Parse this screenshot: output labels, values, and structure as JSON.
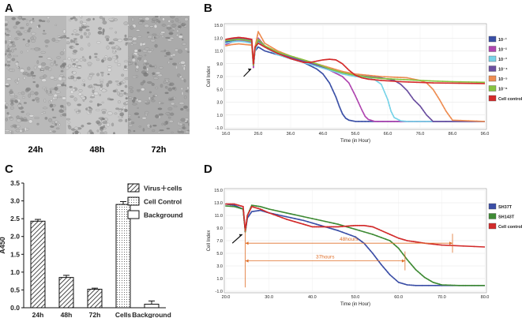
{
  "panels": {
    "a": "A",
    "b": "B",
    "c": "C",
    "d": "D"
  },
  "micrographs": [
    {
      "label": "24h",
      "tone": "#b9b9b9"
    },
    {
      "label": "48h",
      "tone": "#c9c9c9"
    },
    {
      "label": "72h",
      "tone": "#aaaaaa"
    }
  ],
  "chart_data": [
    {
      "id": "B",
      "type": "line",
      "xlabel": "Time (in Hour)",
      "ylabel": "Cell Index",
      "xlim": [
        16,
        96
      ],
      "ylim": [
        -1,
        15
      ],
      "xticks": [
        "16.0",
        "26.0",
        "36.0",
        "46.0",
        "56.0",
        "66.0",
        "76.0",
        "86.0",
        "96.0"
      ],
      "yticks": [
        "-1.0",
        "1.0",
        "3.0",
        "5.0",
        "7.0",
        "9.0",
        "11.0",
        "13.0",
        "15.0"
      ],
      "grid": true,
      "legend_position": "right",
      "annotation": "arrow at virus addition (~24.5 h)",
      "series": [
        {
          "name": "10⁻¹",
          "color": "#3a4fa6",
          "x": [
            16,
            18,
            20,
            22,
            24,
            24.5,
            25,
            26,
            28,
            32,
            36,
            40,
            44,
            46,
            48,
            50,
            51,
            52,
            53,
            54,
            56,
            60,
            66,
            70,
            80,
            96
          ],
          "y": [
            12.4,
            12.6,
            12.8,
            12.7,
            12.4,
            8.6,
            11.0,
            11.6,
            11.0,
            10.4,
            9.8,
            9.2,
            8.2,
            7.4,
            6.0,
            3.8,
            2.4,
            1.2,
            0.5,
            0.2,
            0.0,
            0.0,
            0.0,
            0.0,
            0.0,
            0.0
          ]
        },
        {
          "name": "10⁻²",
          "color": "#b046b0",
          "x": [
            16,
            18,
            20,
            22,
            24,
            24.5,
            25,
            26,
            28,
            32,
            36,
            40,
            44,
            48,
            52,
            54,
            56,
            58,
            59,
            60,
            62,
            66,
            70,
            80,
            96
          ],
          "y": [
            12.0,
            12.4,
            12.6,
            12.5,
            12.3,
            8.4,
            11.2,
            13.0,
            11.8,
            10.6,
            10.0,
            9.4,
            8.8,
            8.0,
            7.0,
            6.0,
            4.0,
            1.8,
            0.8,
            0.3,
            0.0,
            0.0,
            0.0,
            0.0,
            0.0
          ]
        },
        {
          "name": "10⁻³",
          "color": "#78d3e8",
          "x": [
            16,
            18,
            20,
            22,
            24,
            24.5,
            25,
            26,
            28,
            32,
            36,
            40,
            44,
            48,
            52,
            56,
            60,
            62,
            64,
            66,
            67,
            68,
            70,
            72,
            80,
            96
          ],
          "y": [
            12.2,
            12.4,
            12.5,
            12.4,
            12.2,
            8.8,
            11.0,
            12.4,
            11.6,
            10.4,
            9.8,
            9.2,
            8.6,
            8.0,
            7.4,
            7.0,
            6.8,
            6.5,
            5.8,
            3.4,
            1.6,
            0.6,
            0.1,
            0.0,
            0.0,
            0.0
          ]
        },
        {
          "name": "10⁻⁴",
          "color": "#6b4fa0",
          "x": [
            16,
            18,
            20,
            22,
            24,
            24.5,
            25,
            26,
            28,
            32,
            36,
            40,
            44,
            48,
            52,
            56,
            60,
            64,
            68,
            70,
            72,
            74,
            76,
            78,
            80,
            96
          ],
          "y": [
            12.6,
            12.8,
            12.9,
            12.8,
            12.6,
            9.0,
            11.4,
            12.6,
            11.8,
            10.6,
            10.0,
            9.4,
            8.8,
            8.2,
            7.6,
            7.2,
            7.0,
            6.8,
            6.4,
            5.8,
            4.8,
            3.4,
            2.4,
            1.0,
            0.0,
            0.0
          ]
        },
        {
          "name": "10⁻⁵",
          "color": "#ee8d52",
          "x": [
            16,
            18,
            20,
            22,
            24,
            24.5,
            25,
            26,
            28,
            32,
            36,
            40,
            44,
            48,
            52,
            56,
            60,
            64,
            68,
            72,
            76,
            78,
            80,
            82,
            84,
            86,
            96
          ],
          "y": [
            11.8,
            12.0,
            12.1,
            12.0,
            11.9,
            8.8,
            11.6,
            14.0,
            12.2,
            11.0,
            10.2,
            9.6,
            9.0,
            8.4,
            7.8,
            7.4,
            7.2,
            7.0,
            6.9,
            6.8,
            6.4,
            6.0,
            5.0,
            3.4,
            1.6,
            0.2,
            0.0
          ]
        },
        {
          "name": "10⁻⁶",
          "color": "#86c440",
          "x": [
            16,
            18,
            20,
            22,
            24,
            24.5,
            25,
            26,
            28,
            32,
            36,
            40,
            44,
            48,
            52,
            56,
            60,
            64,
            68,
            72,
            76,
            80,
            86,
            96
          ],
          "y": [
            12.6,
            12.7,
            12.8,
            12.7,
            12.5,
            8.8,
            11.4,
            12.8,
            11.8,
            10.8,
            10.2,
            9.6,
            9.0,
            8.2,
            7.6,
            7.2,
            6.9,
            6.7,
            6.6,
            6.5,
            6.4,
            6.3,
            6.2,
            6.1
          ]
        },
        {
          "name": "Cell control",
          "color": "#d42a2a",
          "x": [
            16,
            18,
            20,
            22,
            24,
            24.5,
            25,
            26,
            28,
            32,
            36,
            40,
            42,
            44,
            46,
            48,
            50,
            52,
            54,
            56,
            58,
            60,
            64,
            70,
            80,
            96
          ],
          "y": [
            12.8,
            13.0,
            13.1,
            13.0,
            12.8,
            9.0,
            11.6,
            12.2,
            11.6,
            10.6,
            9.8,
            9.2,
            9.2,
            9.4,
            9.6,
            9.7,
            9.6,
            9.0,
            8.0,
            7.2,
            6.8,
            6.6,
            6.4,
            6.2,
            6.0,
            5.9
          ]
        }
      ]
    },
    {
      "id": "C",
      "type": "bar",
      "ylabel": "A450",
      "ylim": [
        0,
        3.5
      ],
      "yticks": [
        "0.0",
        "0.5",
        "1.0",
        "1.5",
        "2.0",
        "2.5",
        "3.0",
        "3.5"
      ],
      "categories": [
        "24h",
        "48h",
        "72h",
        "Cells",
        "Background"
      ],
      "values": [
        2.43,
        0.85,
        0.52,
        2.9,
        0.1
      ],
      "errors": [
        0.05,
        0.06,
        0.03,
        0.08,
        0.09
      ],
      "patterns": [
        "hatch",
        "hatch",
        "hatch",
        "dots",
        "empty"
      ],
      "legend_position": "top-right",
      "legend": [
        {
          "label": "Virus＋cells",
          "pattern": "hatch"
        },
        {
          "label": "Cell Control",
          "pattern": "dots"
        },
        {
          "label": "Background",
          "pattern": "empty"
        }
      ]
    },
    {
      "id": "D",
      "type": "line",
      "xlabel": "Time (in Hour)",
      "ylabel": "Cell Index",
      "xlim": [
        20,
        80
      ],
      "ylim": [
        -1,
        15
      ],
      "xticks": [
        "20.0",
        "30.0",
        "40.0",
        "50.0",
        "60.0",
        "70.0",
        "80.0"
      ],
      "yticks": [
        "-1.0",
        "1.0",
        "3.0",
        "5.0",
        "7.0",
        "9.0",
        "11.0",
        "13.0",
        "15.0"
      ],
      "grid": true,
      "legend_position": "right",
      "annotations": [
        {
          "text": "48hours",
          "from_x": 24.5,
          "to_x": 72.5,
          "y": 6.6
        },
        {
          "text": "37hours",
          "from_x": 24.5,
          "to_x": 61.5,
          "y": 3.8
        }
      ],
      "series": [
        {
          "name": "SH37T",
          "color": "#3b4ea6",
          "x": [
            20,
            22,
            24,
            24.5,
            25,
            26,
            28,
            30,
            34,
            38,
            42,
            46,
            50,
            52,
            54,
            56,
            58,
            60,
            62,
            64,
            70,
            80
          ],
          "y": [
            12.8,
            12.6,
            12.0,
            8.4,
            10.6,
            11.6,
            11.8,
            11.4,
            10.8,
            10.2,
            9.4,
            8.6,
            7.6,
            6.6,
            5.0,
            3.2,
            1.6,
            0.4,
            0.0,
            -0.1,
            -0.1,
            -0.1
          ]
        },
        {
          "name": "SH143T",
          "color": "#3e8a34",
          "x": [
            20,
            22,
            24,
            24.5,
            25,
            26,
            28,
            30,
            34,
            38,
            42,
            46,
            50,
            54,
            58,
            60,
            62,
            64,
            66,
            68,
            70,
            74,
            80
          ],
          "y": [
            12.5,
            12.4,
            12.0,
            8.4,
            11.0,
            12.6,
            12.4,
            12.0,
            11.4,
            10.8,
            10.2,
            9.6,
            8.8,
            8.0,
            7.0,
            5.8,
            4.0,
            2.4,
            1.2,
            0.4,
            0.0,
            -0.1,
            -0.1
          ]
        },
        {
          "name": "Cell control",
          "color": "#d22a2a",
          "x": [
            20,
            22,
            24,
            24.5,
            25,
            26,
            28,
            30,
            34,
            38,
            40,
            42,
            44,
            46,
            48,
            50,
            52,
            54,
            56,
            58,
            60,
            62,
            64,
            66,
            70,
            80
          ],
          "y": [
            12.8,
            12.8,
            12.4,
            8.6,
            11.0,
            12.4,
            12.0,
            11.4,
            10.4,
            9.6,
            9.2,
            9.2,
            9.2,
            9.2,
            9.3,
            9.4,
            9.4,
            9.2,
            8.6,
            8.0,
            7.4,
            7.0,
            6.8,
            6.6,
            6.3,
            6.0
          ]
        }
      ]
    }
  ]
}
